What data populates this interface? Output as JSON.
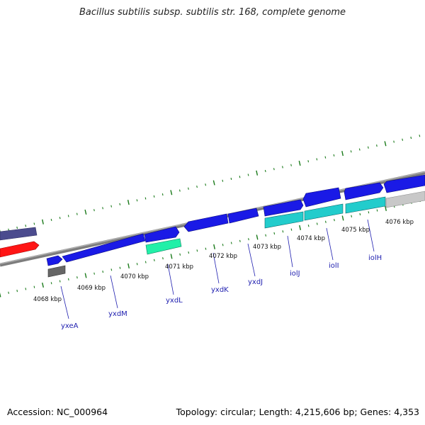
{
  "title": "Bacillus subtilis subsp. subtilis str. 168, complete genome",
  "footer": {
    "accession": "Accession: NC_000964",
    "summary": "Topology: circular; Length: 4,215,606 bp; Genes: 4,353"
  },
  "colors": {
    "backbone": "#8a8a8a",
    "tick": "#1a7a1a",
    "cds_blue": "#1a1ae6",
    "cds_purple": "#4a4a8c",
    "rrna_red": "#ff1a1a",
    "gray_feature": "#666666",
    "cyan_feature": "#22cccc",
    "teal_feature": "#22e6a0",
    "lightgray_feature": "#c8c8c8",
    "label": "#2020b0"
  },
  "scale_labels": [
    "4068 kbp",
    "4069 kbp",
    "4070 kbp",
    "4071 kbp",
    "4072 kbp",
    "4073 kbp",
    "4074 kbp",
    "4075 kbp",
    "4076 kbp"
  ],
  "gene_labels": [
    "yxeA",
    "yxdM",
    "yxdL",
    "yxdK",
    "yxdJ",
    "iolJ",
    "iolI",
    "iolH"
  ]
}
